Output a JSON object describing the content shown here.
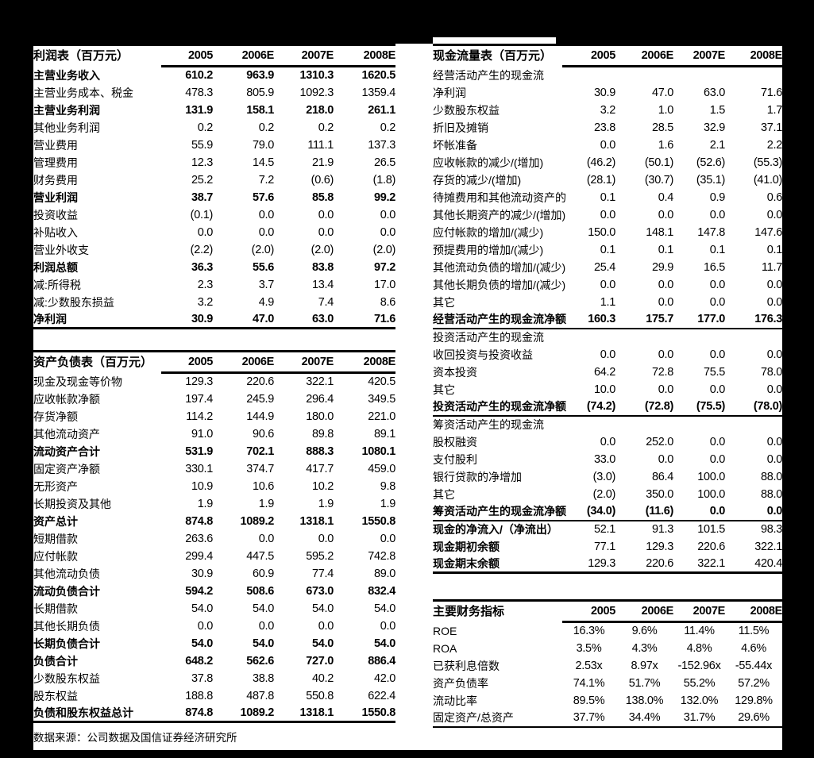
{
  "colors": {
    "page_background": "#000000",
    "panel_background": "#ffffff",
    "text": "#000000",
    "rule": "#000000"
  },
  "footer": {
    "source_note": "数据来源：公司数据及国信证券经济研究所"
  },
  "income_statement": {
    "title": "利润表（百万元）",
    "columns": [
      "2005",
      "2006E",
      "2007E",
      "2008E"
    ],
    "rows": [
      {
        "label": "主营业务收入",
        "values": [
          "610.2",
          "963.9",
          "1310.3",
          "1620.5"
        ],
        "bold": true
      },
      {
        "label": "主营业务成本、税金",
        "values": [
          "478.3",
          "805.9",
          "1092.3",
          "1359.4"
        ]
      },
      {
        "label": "主营业务利润",
        "values": [
          "131.9",
          "158.1",
          "218.0",
          "261.1"
        ],
        "bold": true
      },
      {
        "label": "其他业务利润",
        "values": [
          "0.2",
          "0.2",
          "0.2",
          "0.2"
        ]
      },
      {
        "label": "营业费用",
        "values": [
          "55.9",
          "79.0",
          "111.1",
          "137.3"
        ]
      },
      {
        "label": "管理费用",
        "values": [
          "12.3",
          "14.5",
          "21.9",
          "26.5"
        ]
      },
      {
        "label": "财务费用",
        "values": [
          "25.2",
          "7.2",
          "(0.6)",
          "(1.8)"
        ]
      },
      {
        "label": "营业利润",
        "values": [
          "38.7",
          "57.6",
          "85.8",
          "99.2"
        ],
        "bold": true
      },
      {
        "label": "投资收益",
        "values": [
          "(0.1)",
          "0.0",
          "0.0",
          "0.0"
        ]
      },
      {
        "label": "补贴收入",
        "values": [
          "0.0",
          "0.0",
          "0.0",
          "0.0"
        ]
      },
      {
        "label": "营业外收支",
        "values": [
          "(2.2)",
          "(2.0)",
          "(2.0)",
          "(2.0)"
        ]
      },
      {
        "label": "利润总额",
        "values": [
          "36.3",
          "55.6",
          "83.8",
          "97.2"
        ],
        "bold": true
      },
      {
        "label": "减:所得税",
        "values": [
          "2.3",
          "3.7",
          "13.4",
          "17.0"
        ]
      },
      {
        "label": "减:少数股东损益",
        "values": [
          "3.2",
          "4.9",
          "7.4",
          "8.6"
        ]
      },
      {
        "label": "净利润",
        "values": [
          "30.9",
          "47.0",
          "63.0",
          "71.6"
        ],
        "bold": true
      }
    ]
  },
  "balance_sheet": {
    "title": "资产负债表（百万元）",
    "columns": [
      "2005",
      "2006E",
      "2007E",
      "2008E"
    ],
    "rows": [
      {
        "label": "现金及现金等价物",
        "values": [
          "129.3",
          "220.6",
          "322.1",
          "420.5"
        ]
      },
      {
        "label": "应收帐款净额",
        "values": [
          "197.4",
          "245.9",
          "296.4",
          "349.5"
        ]
      },
      {
        "label": "存货净额",
        "values": [
          "114.2",
          "144.9",
          "180.0",
          "221.0"
        ]
      },
      {
        "label": "其他流动资产",
        "values": [
          "91.0",
          "90.6",
          "89.8",
          "89.1"
        ]
      },
      {
        "label": "流动资产合计",
        "values": [
          "531.9",
          "702.1",
          "888.3",
          "1080.1"
        ],
        "bold": true
      },
      {
        "label": "固定资产净额",
        "values": [
          "330.1",
          "374.7",
          "417.7",
          "459.0"
        ]
      },
      {
        "label": "无形资产",
        "values": [
          "10.9",
          "10.6",
          "10.2",
          "9.8"
        ]
      },
      {
        "label": "长期投资及其他",
        "values": [
          "1.9",
          "1.9",
          "1.9",
          "1.9"
        ]
      },
      {
        "label": "资产总计",
        "values": [
          "874.8",
          "1089.2",
          "1318.1",
          "1550.8"
        ],
        "bold": true
      },
      {
        "label": "短期借款",
        "values": [
          "263.6",
          "0.0",
          "0.0",
          "0.0"
        ]
      },
      {
        "label": "应付帐款",
        "values": [
          "299.4",
          "447.5",
          "595.2",
          "742.8"
        ]
      },
      {
        "label": "其他流动负债",
        "values": [
          "30.9",
          "60.9",
          "77.4",
          "89.0"
        ]
      },
      {
        "label": "流动负债合计",
        "values": [
          "594.2",
          "508.6",
          "673.0",
          "832.4"
        ],
        "bold": true
      },
      {
        "label": "长期借款",
        "values": [
          "54.0",
          "54.0",
          "54.0",
          "54.0"
        ]
      },
      {
        "label": "其他长期负债",
        "values": [
          "0.0",
          "0.0",
          "0.0",
          "0.0"
        ]
      },
      {
        "label": "长期负债合计",
        "values": [
          "54.0",
          "54.0",
          "54.0",
          "54.0"
        ],
        "bold": true
      },
      {
        "label": "负债合计",
        "values": [
          "648.2",
          "562.6",
          "727.0",
          "886.4"
        ],
        "bold": true
      },
      {
        "label": "少数股东权益",
        "values": [
          "37.8",
          "38.8",
          "40.2",
          "42.0"
        ]
      },
      {
        "label": "股东权益",
        "values": [
          "188.8",
          "487.8",
          "550.8",
          "622.4"
        ]
      },
      {
        "label": "负债和股东权益总计",
        "values": [
          "874.8",
          "1089.2",
          "1318.1",
          "1550.8"
        ],
        "bold": true
      }
    ]
  },
  "cash_flow": {
    "title": "现金流量表（百万元）",
    "columns": [
      "2005",
      "2006E",
      "2007E",
      "2008E"
    ],
    "rows": [
      {
        "label": "经营活动产生的现金流",
        "values": [],
        "section": true
      },
      {
        "label": "净利润",
        "values": [
          "30.9",
          "47.0",
          "63.0",
          "71.6"
        ]
      },
      {
        "label": "少数股东权益",
        "values": [
          "3.2",
          "1.0",
          "1.5",
          "1.7"
        ]
      },
      {
        "label": "折旧及摊销",
        "values": [
          "23.8",
          "28.5",
          "32.9",
          "37.1"
        ]
      },
      {
        "label": "坏帐准备",
        "values": [
          "0.0",
          "1.6",
          "2.1",
          "2.2"
        ]
      },
      {
        "label": "应收帐款的减少/(增加)",
        "values": [
          "(46.2)",
          "(50.1)",
          "(52.6)",
          "(55.3)"
        ]
      },
      {
        "label": "存货的减少/(增加)",
        "values": [
          "(28.1)",
          "(30.7)",
          "(35.1)",
          "(41.0)"
        ]
      },
      {
        "label": "待摊费用和其他流动资产的",
        "values": [
          "0.1",
          "0.4",
          "0.9",
          "0.6"
        ]
      },
      {
        "label": "其他长期资产的减少/(增加)",
        "values": [
          "0.0",
          "0.0",
          "0.0",
          "0.0"
        ]
      },
      {
        "label": "应付帐款的增加/(减少)",
        "values": [
          "150.0",
          "148.1",
          "147.8",
          "147.6"
        ]
      },
      {
        "label": "预提费用的增加/(减少)",
        "values": [
          "0.1",
          "0.1",
          "0.1",
          "0.1"
        ]
      },
      {
        "label": "其他流动负债的增加/(减少)",
        "values": [
          "25.4",
          "29.9",
          "16.5",
          "11.7"
        ]
      },
      {
        "label": "其他长期负债的增加/(减少)",
        "values": [
          "0.0",
          "0.0",
          "0.0",
          "0.0"
        ]
      },
      {
        "label": "其它",
        "values": [
          "1.1",
          "0.0",
          "0.0",
          "0.0"
        ]
      },
      {
        "label": "经营活动产生的现金流净额",
        "values": [
          "160.3",
          "175.7",
          "177.0",
          "176.3"
        ],
        "bold": true,
        "rule_below": true
      },
      {
        "label": "投资活动产生的现金流",
        "values": [],
        "section": true
      },
      {
        "label": "收回投资与投资收益",
        "values": [
          "0.0",
          "0.0",
          "0.0",
          "0.0"
        ]
      },
      {
        "label": "资本投资",
        "values": [
          "64.2",
          "72.8",
          "75.5",
          "78.0"
        ]
      },
      {
        "label": "其它",
        "values": [
          "10.0",
          "0.0",
          "0.0",
          "0.0"
        ]
      },
      {
        "label": "投资活动产生的现金流净额",
        "values": [
          "(74.2)",
          "(72.8)",
          "(75.5)",
          "(78.0)"
        ],
        "bold": true,
        "rule_below": true
      },
      {
        "label": "筹资活动产生的现金流",
        "values": [],
        "section": true
      },
      {
        "label": "股权融资",
        "values": [
          "0.0",
          "252.0",
          "0.0",
          "0.0"
        ]
      },
      {
        "label": "支付股利",
        "values": [
          "33.0",
          "0.0",
          "0.0",
          "0.0"
        ]
      },
      {
        "label": "银行贷款的净增加",
        "values": [
          "(3.0)",
          "86.4",
          "100.0",
          "88.0"
        ]
      },
      {
        "label": "其它",
        "values": [
          "(2.0)",
          "350.0",
          "100.0",
          "88.0"
        ]
      },
      {
        "label": "筹资活动产生的现金流净额",
        "values": [
          "(34.0)",
          "(11.6)",
          "0.0",
          "0.0"
        ],
        "bold": true,
        "rule_below": true
      },
      {
        "label": "现金的净流入/（净流出）",
        "values": [
          "52.1",
          "91.3",
          "101.5",
          "98.3"
        ],
        "bold_label": true
      },
      {
        "label": "现金期初余额",
        "values": [
          "77.1",
          "129.3",
          "220.6",
          "322.1"
        ],
        "bold_label": true
      },
      {
        "label": "现金期末余额",
        "values": [
          "129.3",
          "220.6",
          "322.1",
          "420.4"
        ],
        "bold_label": true
      }
    ]
  },
  "key_ratios": {
    "title": "主要财务指标",
    "columns": [
      "2005",
      "2006E",
      "2007E",
      "2008E"
    ],
    "rows": [
      {
        "label": "ROE",
        "values": [
          "16.3%",
          "9.6%",
          "11.4%",
          "11.5%"
        ]
      },
      {
        "label": "ROA",
        "values": [
          "3.5%",
          "4.3%",
          "4.8%",
          "4.6%"
        ]
      },
      {
        "label": "已获利息倍数",
        "values": [
          "2.53x",
          "8.97x",
          "-152.96x",
          "-55.44x"
        ]
      },
      {
        "label": "资产负债率",
        "values": [
          "74.1%",
          "51.7%",
          "55.2%",
          "57.2%"
        ]
      },
      {
        "label": "流动比率",
        "values": [
          "89.5%",
          "138.0%",
          "132.0%",
          "129.8%"
        ]
      },
      {
        "label": "固定资产/总资产",
        "values": [
          "37.7%",
          "34.4%",
          "31.7%",
          "29.6%"
        ]
      }
    ]
  }
}
